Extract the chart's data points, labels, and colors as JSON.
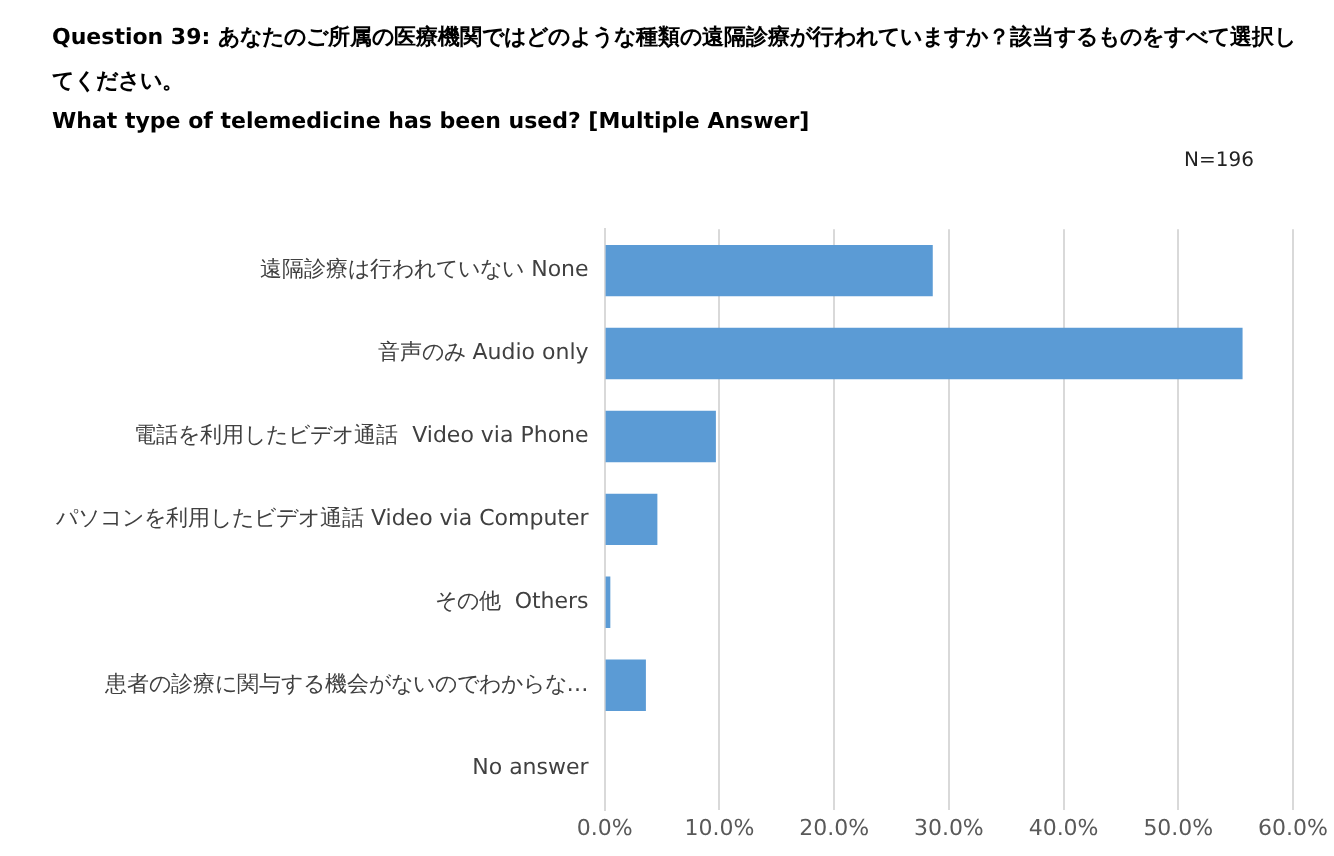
{
  "chart_data": {
    "type": "bar",
    "orientation": "horizontal",
    "title": "Question 39: あなたのご所属の医療機関ではどのような種類の遠隔診療が行われていますか？該当するものをすべて選択してください。",
    "subtitle": "What type of telemedicine has been used? [Multiple Answer]",
    "annotations": [
      "N=196"
    ],
    "categories": [
      "遠隔診療は行われていない None",
      "音声のみ Audio only",
      "電話を利用したビデオ通話  Video via Phone",
      "パソコンを利用したビデオ通話 Video via Computer",
      "その他  Others",
      "患者の診療に関与する機会がないのでわからな…",
      "No answer"
    ],
    "values": [
      28.6,
      55.6,
      9.7,
      4.6,
      0.5,
      3.6,
      0
    ],
    "color": "#5b9bd5",
    "xlim": [
      0,
      60
    ],
    "xticks": [
      {
        "value": 0,
        "label": "0.0%"
      },
      {
        "value": 10,
        "label": "10.0%"
      },
      {
        "value": 20,
        "label": "20.0%"
      },
      {
        "value": 30,
        "label": "30.0%"
      },
      {
        "value": 40,
        "label": "40.0%"
      },
      {
        "value": 50,
        "label": "50.0%"
      },
      {
        "value": 60,
        "label": "60.0%"
      }
    ],
    "grid": "x",
    "legend": false
  }
}
